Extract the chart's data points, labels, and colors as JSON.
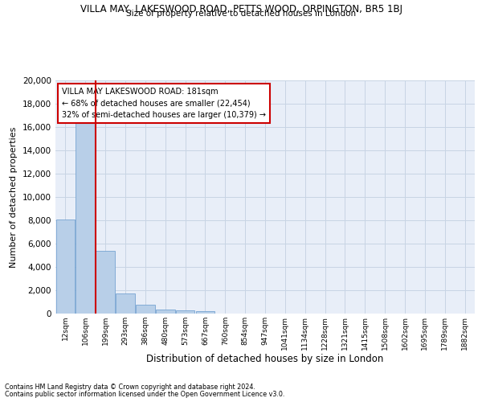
{
  "title1": "VILLA MAY, LAKESWOOD ROAD, PETTS WOOD, ORPINGTON, BR5 1BJ",
  "title2": "Size of property relative to detached houses in London",
  "xlabel": "Distribution of detached houses by size in London",
  "ylabel": "Number of detached properties",
  "bar_color": "#b8cfe8",
  "bar_edgecolor": "#6699cc",
  "grid_color": "#c8d4e4",
  "background_color": "#e8eef8",
  "categories": [
    "12sqm",
    "106sqm",
    "199sqm",
    "293sqm",
    "386sqm",
    "480sqm",
    "573sqm",
    "667sqm",
    "760sqm",
    "854sqm",
    "947sqm",
    "1041sqm",
    "1134sqm",
    "1228sqm",
    "1321sqm",
    "1415sqm",
    "1508sqm",
    "1602sqm",
    "1695sqm",
    "1789sqm",
    "1882sqm"
  ],
  "values": [
    8100,
    16700,
    5400,
    1750,
    750,
    350,
    275,
    200,
    0,
    0,
    0,
    0,
    0,
    0,
    0,
    0,
    0,
    0,
    0,
    0,
    0
  ],
  "red_line_x": 1.5,
  "annotation_text": "VILLA MAY LAKESWOOD ROAD: 181sqm\n← 68% of detached houses are smaller (22,454)\n32% of semi-detached houses are larger (10,379) →",
  "annotation_box_color": "#cc0000",
  "ylim": [
    0,
    20000
  ],
  "yticks": [
    0,
    2000,
    4000,
    6000,
    8000,
    10000,
    12000,
    14000,
    16000,
    18000,
    20000
  ],
  "footnote1": "Contains HM Land Registry data © Crown copyright and database right 2024.",
  "footnote2": "Contains public sector information licensed under the Open Government Licence v3.0."
}
